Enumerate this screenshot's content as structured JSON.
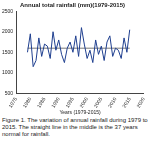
{
  "chart_data": {
    "type": "line",
    "title": "Annual total rainfall (mm)(1979-2015)",
    "x_label": "Years (1979-2015)",
    "caption": "Figure 1. The variation of annual rainfall during 1979 to 2015. The straight line in the middle is the 37 years normal for rainfall.",
    "x": [
      1979,
      1980,
      1981,
      1982,
      1983,
      1984,
      1985,
      1986,
      1987,
      1988,
      1989,
      1990,
      1991,
      1992,
      1993,
      1994,
      1995,
      1996,
      1997,
      1998,
      1999,
      2000,
      2001,
      2002,
      2003,
      2004,
      2005,
      2006,
      2007,
      2008,
      2009,
      2010,
      2011,
      2012,
      2013,
      2014,
      2015
    ],
    "values": [
      1500,
      1950,
      1150,
      1300,
      1850,
      1400,
      1700,
      1650,
      1350,
      2000,
      1550,
      1800,
      1450,
      1250,
      1600,
      1750,
      1500,
      1900,
      1400,
      2100,
      1700,
      1350,
      1550,
      1250,
      1800,
      1450,
      1650,
      1300,
      1750,
      1900,
      1400,
      1600,
      1550,
      1350,
      1850,
      1500,
      2050
    ],
    "normal": 1600,
    "color": "#1f3f8f",
    "xlim": [
      1975,
      2020
    ],
    "xticks": [
      1975,
      1980,
      1985,
      1990,
      1995,
      2000,
      2005,
      2010,
      2015,
      2020
    ],
    "ylim": [
      500,
      2500
    ],
    "yticks": [
      500,
      1000,
      1500,
      2000,
      2500
    ],
    "grid": false
  }
}
